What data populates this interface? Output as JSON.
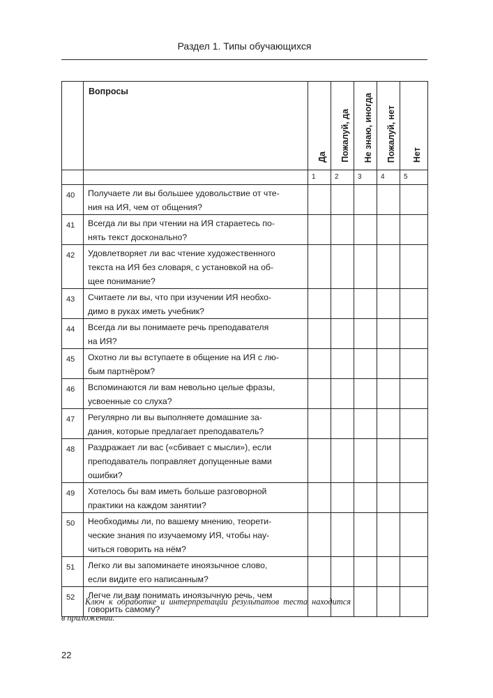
{
  "running_head": "Раздел 1. Типы обучающихся",
  "table": {
    "question_header": "Вопросы",
    "answer_headers": [
      "Да",
      "Пожалуй, да",
      "Не знаю, иногда",
      "Пожалуй, нет",
      "Нет"
    ],
    "answer_numbers": [
      "1",
      "2",
      "3",
      "4",
      "5"
    ],
    "rows": [
      {
        "num": "40",
        "lines": [
          "Получаете ли вы большее удовольствие от чте-",
          "ния на ИЯ, чем от общения?"
        ]
      },
      {
        "num": "41",
        "lines": [
          "Всегда ли вы при чтении на ИЯ стараетесь по-",
          "нять текст досконально?"
        ]
      },
      {
        "num": "42",
        "lines": [
          "Удовлетворяет ли вас чтение художественного",
          "текста на ИЯ без словаря, с установкой на об-",
          "щее понимание?"
        ]
      },
      {
        "num": "43",
        "lines": [
          "Считаете ли вы, что при изучении ИЯ необхо-",
          "димо в руках иметь учебник?"
        ]
      },
      {
        "num": "44",
        "lines": [
          "Всегда ли вы понимаете речь преподавателя",
          "на ИЯ?"
        ]
      },
      {
        "num": "45",
        "lines": [
          "Охотно ли вы вступаете в общение на ИЯ с лю-",
          "бым партнёром?"
        ]
      },
      {
        "num": "46",
        "lines": [
          "Вспоминаются ли вам невольно целые фразы,",
          "усвоенные со слуха?"
        ]
      },
      {
        "num": "47",
        "lines": [
          "Регулярно ли вы выполняете домашние за-",
          "дания, которые предлагает преподаватель?"
        ]
      },
      {
        "num": "48",
        "lines": [
          "Раздражает ли вас («сбивает с мысли»), если",
          "преподаватель поправляет допущенные вами",
          "ошибки?"
        ]
      },
      {
        "num": "49",
        "lines": [
          "Хотелось бы вам иметь больше разговорной",
          "практики на каждом занятии?"
        ]
      },
      {
        "num": "50",
        "lines": [
          "Необходимы ли, по вашему мнению, теорети-",
          "ческие знания по изучаемому ИЯ, чтобы нау-",
          "читься говорить на нём?"
        ]
      },
      {
        "num": "51",
        "lines": [
          "Легко ли вы запоминаете иноязычное слово,",
          "если видите его написанным?"
        ]
      },
      {
        "num": "52",
        "lines": [
          "Легче ли вам понимать иноязычную речь, чем",
          "говорить самому?"
        ]
      }
    ]
  },
  "note": {
    "line1": "Ключ к обработке и интерпретации результатов теста находится",
    "line2": "в приложении."
  },
  "page_number": "22"
}
